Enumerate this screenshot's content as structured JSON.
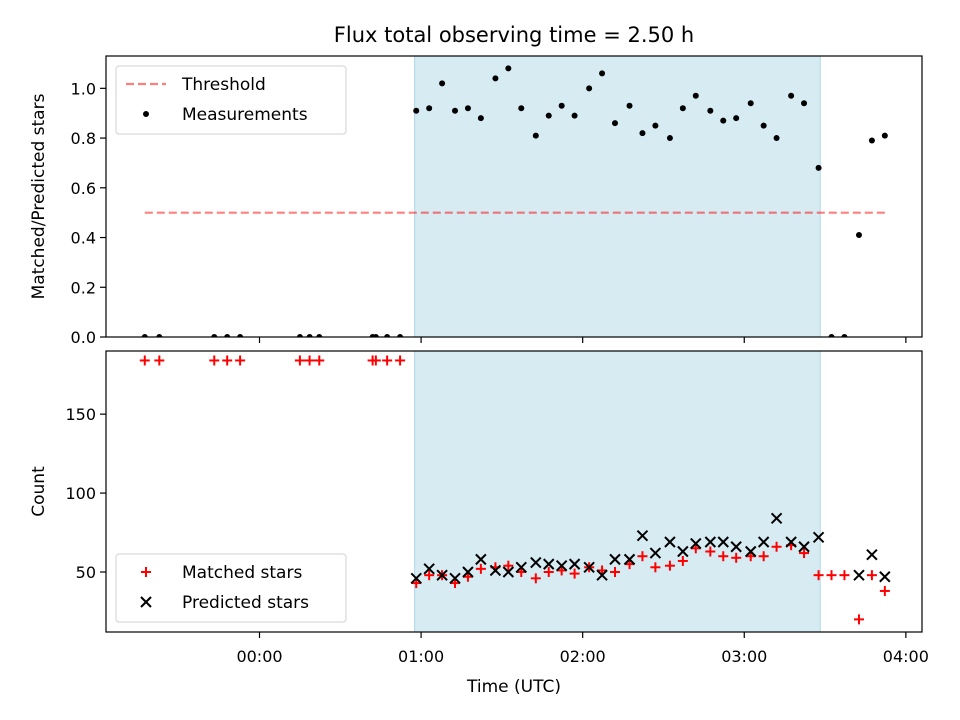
{
  "chart_data": {
    "title": "Flux total observing time = 2.50 h",
    "xlabel": "Time (UTC)",
    "x_unit": "hours UTC",
    "xlim": [
      -0.95,
      4.1
    ],
    "xticks": [
      0,
      1,
      2,
      3,
      4
    ],
    "xtick_labels": [
      "00:00",
      "01:00",
      "02:00",
      "03:00",
      "04:00"
    ],
    "observing_window": {
      "start": 0.96,
      "end": 3.47,
      "color": "#add8e6"
    },
    "panels": [
      {
        "type": "scatter",
        "ylabel": "Matched/Predicted stars",
        "ylim": [
          0,
          1.13
        ],
        "yticks": [
          0.0,
          0.2,
          0.4,
          0.6,
          0.8,
          1.0
        ],
        "ytick_labels": [
          "0.0",
          "0.2",
          "0.4",
          "0.6",
          "0.8",
          "1.0"
        ],
        "legend_position": "upper-left",
        "series": [
          {
            "name": "Threshold",
            "kind": "hline",
            "value": 0.5,
            "x_range": [
              -0.71,
              3.87
            ],
            "color": "#ff0000",
            "style": "dashed",
            "alpha": 0.5
          },
          {
            "name": "Measurements",
            "kind": "points",
            "color": "#000000",
            "x": [
              -0.71,
              -0.62,
              -0.28,
              -0.2,
              -0.12,
              0.25,
              0.31,
              0.37,
              0.7,
              0.72,
              0.79,
              0.87,
              0.97,
              1.05,
              1.13,
              1.21,
              1.29,
              1.37,
              1.46,
              1.54,
              1.62,
              1.71,
              1.79,
              1.87,
              1.95,
              2.04,
              2.12,
              2.2,
              2.29,
              2.37,
              2.45,
              2.54,
              2.62,
              2.7,
              2.79,
              2.87,
              2.95,
              3.04,
              3.12,
              3.2,
              3.29,
              3.37,
              3.46,
              3.54,
              3.62,
              3.71,
              3.79,
              3.87
            ],
            "y": [
              0,
              0,
              0,
              0,
              0,
              0,
              0,
              0,
              0,
              0,
              0,
              0,
              0.91,
              0.92,
              1.02,
              0.91,
              0.92,
              0.88,
              1.04,
              1.08,
              0.92,
              0.81,
              0.89,
              0.93,
              0.89,
              1.0,
              1.06,
              0.86,
              0.93,
              0.82,
              0.85,
              0.8,
              0.92,
              0.97,
              0.91,
              0.87,
              0.88,
              0.94,
              0.85,
              0.8,
              0.97,
              0.94,
              0.68,
              0,
              0,
              0.41,
              0.79,
              0.81
            ]
          }
        ]
      },
      {
        "type": "scatter",
        "ylabel": "Count",
        "ylim": [
          12,
          190
        ],
        "yticks": [
          50,
          100,
          150
        ],
        "ytick_labels": [
          "50",
          "100",
          "150"
        ],
        "legend_position": "lower-left",
        "series": [
          {
            "name": "Matched stars",
            "marker": "+",
            "color": "#ff0000",
            "x": [
              -0.71,
              -0.62,
              -0.28,
              -0.2,
              -0.12,
              0.25,
              0.31,
              0.37,
              0.7,
              0.72,
              0.79,
              0.87,
              0.97,
              1.05,
              1.13,
              1.21,
              1.29,
              1.37,
              1.46,
              1.54,
              1.62,
              1.71,
              1.79,
              1.87,
              1.95,
              2.04,
              2.12,
              2.2,
              2.29,
              2.37,
              2.45,
              2.54,
              2.62,
              2.7,
              2.79,
              2.87,
              2.95,
              3.04,
              3.12,
              3.2,
              3.29,
              3.37,
              3.46,
              3.54,
              3.62,
              3.71,
              3.79,
              3.87
            ],
            "y": [
              184,
              184,
              184,
              184,
              184,
              184,
              184,
              184,
              184,
              184,
              184,
              184,
              43,
              48,
              48,
              43,
              47,
              52,
              53,
              54,
              50,
              46,
              50,
              51,
              49,
              53,
              51,
              50,
              55,
              60,
              53,
              54,
              57,
              65,
              63,
              60,
              59,
              60,
              60,
              66,
              67,
              62,
              48,
              48,
              48,
              20,
              48,
              38
            ]
          },
          {
            "name": "Predicted stars",
            "marker": "x",
            "color": "#000000",
            "x": [
              0.97,
              1.05,
              1.13,
              1.21,
              1.29,
              1.37,
              1.46,
              1.54,
              1.62,
              1.71,
              1.79,
              1.87,
              1.95,
              2.04,
              2.12,
              2.2,
              2.29,
              2.37,
              2.45,
              2.54,
              2.62,
              2.7,
              2.79,
              2.87,
              2.95,
              3.04,
              3.12,
              3.2,
              3.29,
              3.37,
              3.46,
              3.71,
              3.79,
              3.87
            ],
            "y": [
              46,
              52,
              48,
              46,
              50,
              58,
              51,
              50,
              53,
              56,
              55,
              54,
              55,
              53,
              48,
              58,
              58,
              73,
              62,
              69,
              63,
              68,
              69,
              69,
              66,
              63,
              69,
              84,
              69,
              66,
              72,
              48,
              61,
              47
            ]
          }
        ]
      }
    ]
  }
}
